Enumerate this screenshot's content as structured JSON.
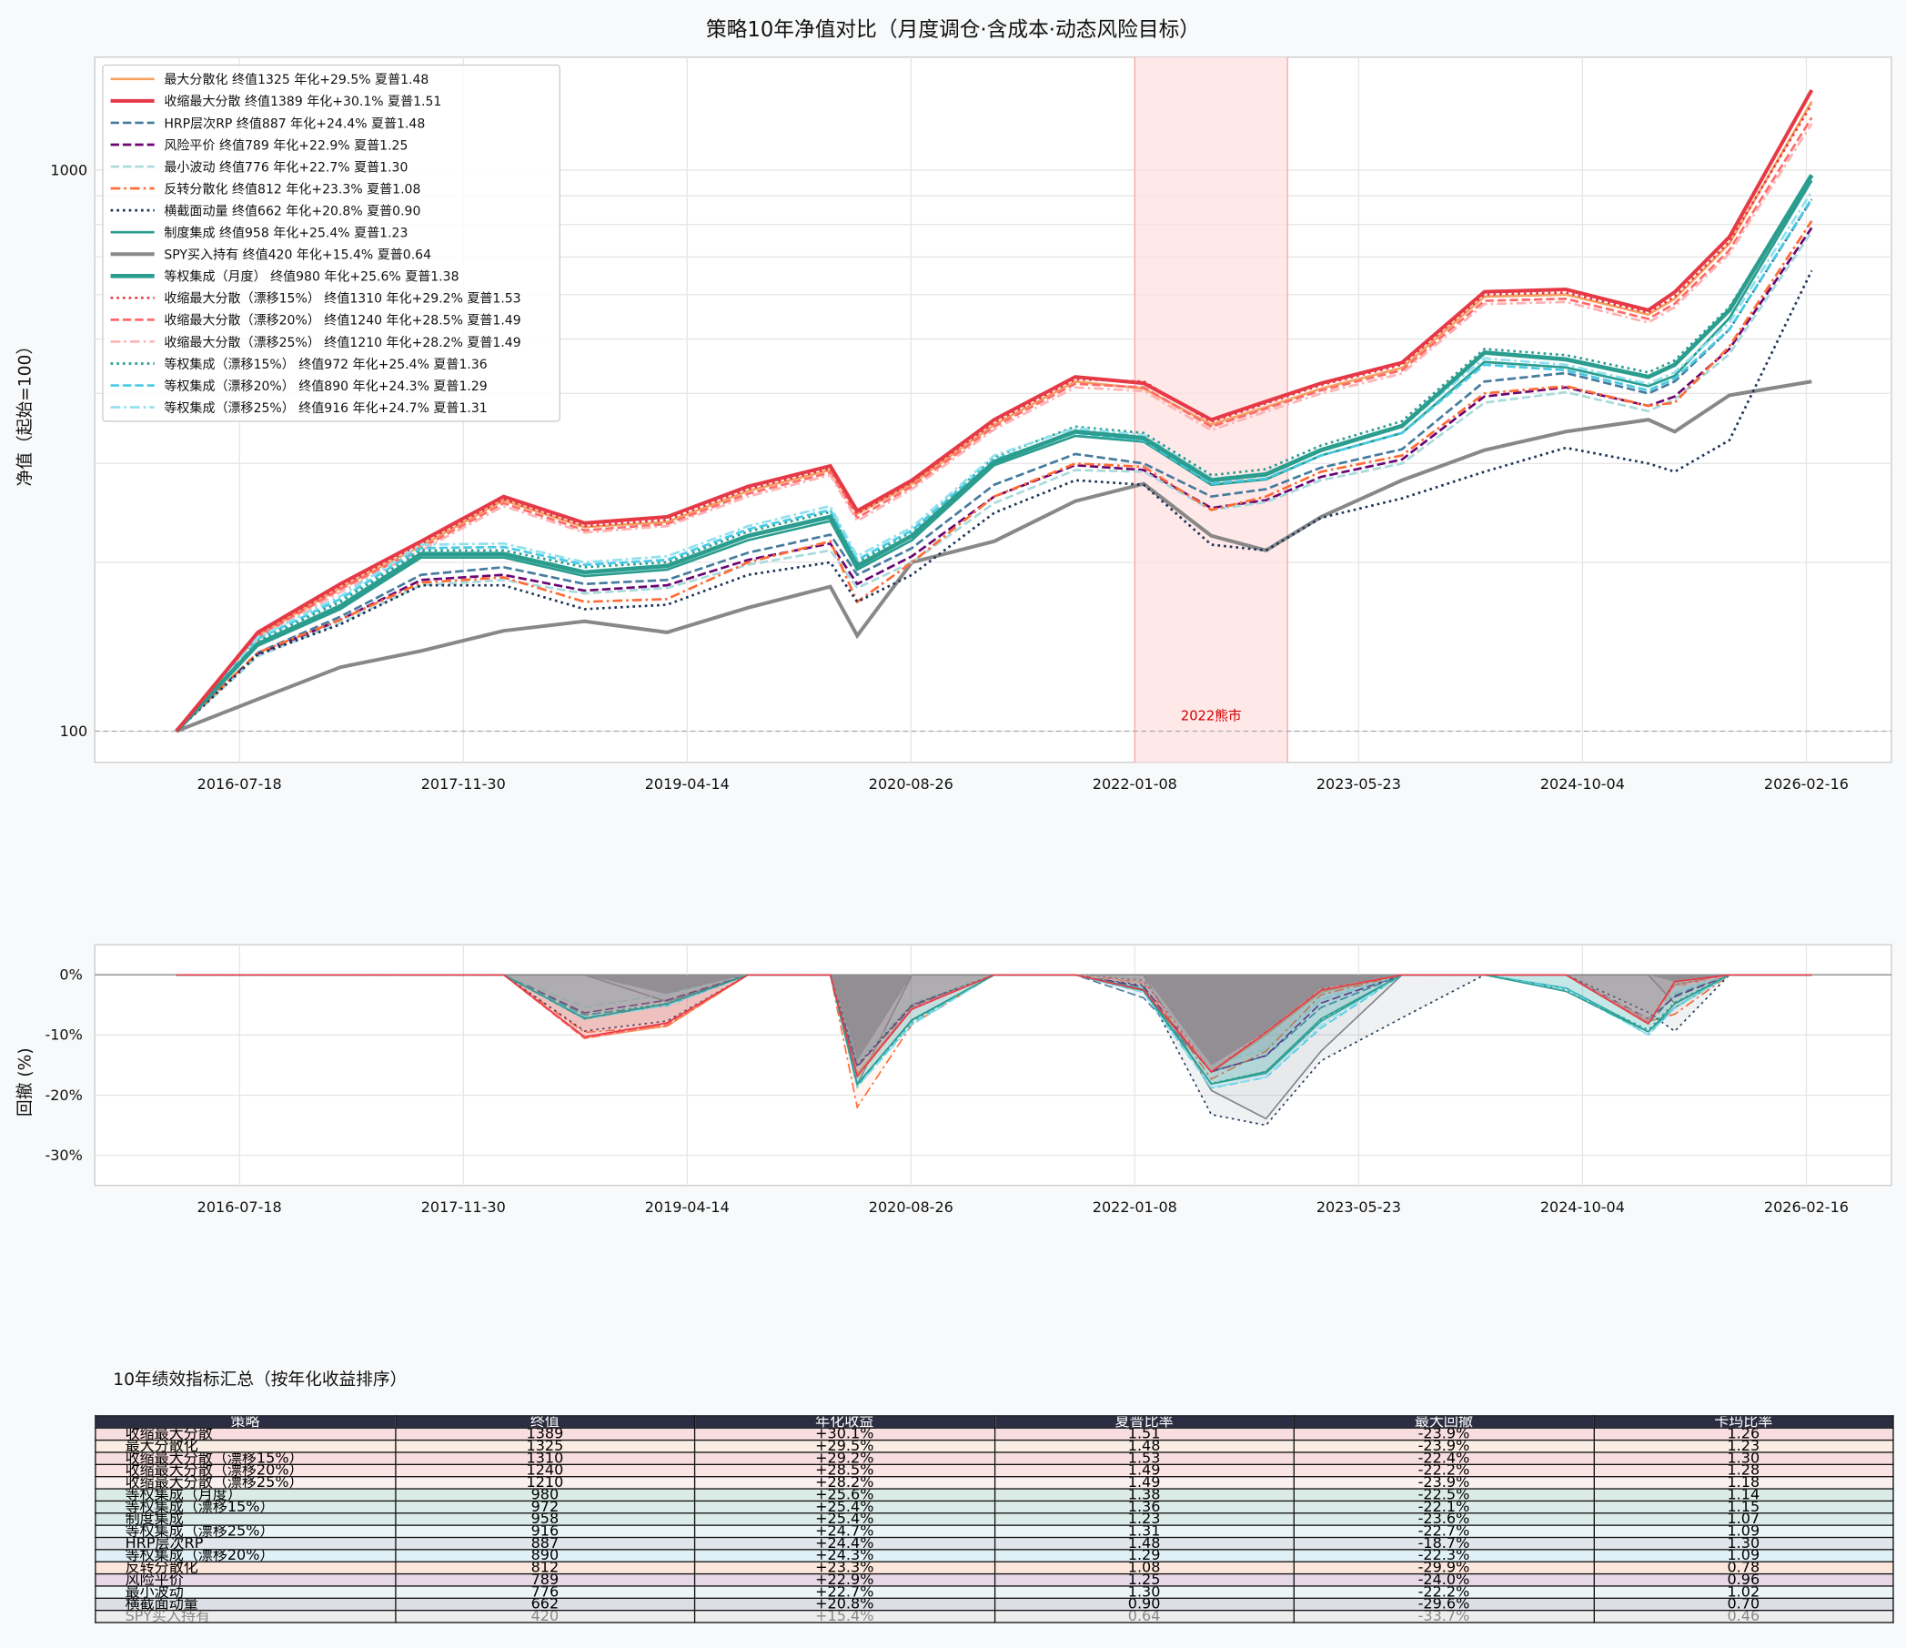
{
  "chart_data": [
    {
      "type": "line",
      "title": "策略10年净值对比（月度调仓·含成本·动态风险目标）",
      "xlabel": "",
      "ylabel": "净值（起始=100）",
      "yscale": "log",
      "ylim": [
        88,
        1590
      ],
      "yticks": [
        "100",
        "1000"
      ],
      "xticks": [
        "2016-07-18",
        "2017-11-30",
        "2019-04-14",
        "2020-08-26",
        "2022-01-08",
        "2023-05-23",
        "2024-10-04",
        "2026-02-16"
      ],
      "grid": true,
      "legend_position": "top-left",
      "reference_line": 100,
      "annotation": {
        "label": "2022熊市",
        "start": "2022-01-08",
        "end": "2022-12-15",
        "color": "#d00000"
      },
      "x": [
        "2016-02",
        "2016-08",
        "2017-02",
        "2017-08",
        "2018-02",
        "2018-08",
        "2019-02",
        "2019-08",
        "2020-02",
        "2020-04",
        "2020-08",
        "2021-02",
        "2021-08",
        "2022-01",
        "2022-06",
        "2022-10",
        "2023-02",
        "2023-08",
        "2024-02",
        "2024-08",
        "2025-02",
        "2025-04",
        "2025-08",
        "2026-02"
      ],
      "series": [
        {
          "name": "最大分散化",
          "legend": "最大分散化  终值1325  年化+29.5%  夏普1.48",
          "color": "#f4a261",
          "style": "solid",
          "width": 2,
          "values": [
            100,
            148,
            180,
            214,
            258,
            231,
            236,
            268,
            292,
            244,
            276,
            352,
            420,
            408,
            352,
            378,
            408,
            444,
            595,
            600,
            553,
            590,
            740,
            1325
          ]
        },
        {
          "name": "收缩最大分散",
          "legend": "收缩最大分散  终值1389  年化+30.1%  夏普1.51",
          "color": "#e63946",
          "style": "solid",
          "width": 3,
          "values": [
            100,
            150,
            183,
            218,
            262,
            235,
            241,
            273,
            297,
            247,
            280,
            359,
            428,
            417,
            359,
            387,
            417,
            454,
            607,
            613,
            563,
            606,
            760,
            1389
          ]
        },
        {
          "name": "HRP层次RP",
          "legend": "HRP层次RP  终值887  年化+24.4%  夏普1.48",
          "color": "#457b9d",
          "style": "dashed",
          "width": 2,
          "values": [
            100,
            138,
            160,
            190,
            196,
            183,
            186,
            208,
            224,
            190,
            212,
            275,
            312,
            300,
            262,
            270,
            295,
            318,
            420,
            435,
            400,
            420,
            520,
            887
          ]
        },
        {
          "name": "风险平价",
          "legend": "风险平价  终值789  年化+22.9%  夏普1.25",
          "color": "#6a0572",
          "style": "dashed",
          "width": 2,
          "values": [
            100,
            137,
            158,
            186,
            190,
            178,
            182,
            202,
            216,
            183,
            205,
            262,
            298,
            292,
            250,
            258,
            284,
            305,
            395,
            410,
            380,
            395,
            480,
            789
          ]
        },
        {
          "name": "最小波动",
          "legend": "最小波动  终值776  年化+22.7%  夏普1.30",
          "color": "#a8dadc",
          "style": "dashed",
          "width": 2,
          "values": [
            100,
            136,
            156,
            182,
            186,
            176,
            180,
            198,
            210,
            180,
            200,
            255,
            292,
            290,
            248,
            256,
            280,
            300,
            385,
            402,
            372,
            390,
            470,
            776
          ]
        },
        {
          "name": "反转分散化",
          "legend": "反转分散化  终值812  年化+23.3%  夏普1.08",
          "color": "#ff6b35",
          "style": "dashdot",
          "width": 2,
          "values": [
            100,
            138,
            158,
            184,
            188,
            170,
            172,
            200,
            218,
            170,
            200,
            262,
            300,
            296,
            248,
            262,
            290,
            310,
            400,
            412,
            380,
            385,
            485,
            812
          ]
        },
        {
          "name": "横截面动量",
          "legend": "横截面动量  终值662  年化+20.8%  夏普0.90",
          "color": "#1d3557",
          "style": "dotted",
          "width": 2,
          "values": [
            100,
            137,
            155,
            182,
            182,
            165,
            168,
            190,
            200,
            170,
            190,
            245,
            280,
            275,
            215,
            210,
            240,
            260,
            290,
            320,
            300,
            290,
            330,
            662
          ]
        },
        {
          "name": "制度集成",
          "legend": "制度集成  终值958  年化+25.4%  夏普1.23",
          "color": "#2a9d8f",
          "style": "solid",
          "width": 2,
          "values": [
            100,
            142,
            165,
            204,
            204,
            189,
            194,
            219,
            237,
            194,
            219,
            298,
            336,
            328,
            275,
            281,
            310,
            340,
            455,
            445,
            412,
            430,
            545,
            958
          ]
        },
        {
          "name": "SPY买入持有",
          "legend": "SPY买入持有  终值420  年化+15.4%  夏普0.64",
          "color": "#888888",
          "style": "solid",
          "width": 3,
          "values": [
            100,
            114,
            130,
            139,
            151,
            157,
            150,
            166,
            181,
            148,
            200,
            218,
            257,
            276,
            223,
            210,
            241,
            280,
            317,
            342,
            359,
            342,
            397,
            420
          ]
        },
        {
          "name": "等权集成（月度）",
          "legend": "等权集成（月度）  终值980  年化+25.6%  夏普1.38",
          "color": "#2a9d8f",
          "style": "solid",
          "width": 3.5,
          "values": [
            100,
            143,
            167,
            207,
            207,
            192,
            197,
            223,
            241,
            197,
            223,
            302,
            342,
            333,
            280,
            287,
            317,
            350,
            473,
            460,
            428,
            450,
            563,
            980
          ]
        },
        {
          "name": "收缩最大分散（漂移15%）",
          "legend": "收缩最大分散（漂移15%）  终值1310  年化+29.2%  夏普1.53",
          "color": "#e63946",
          "style": "dotted",
          "width": 2,
          "values": [
            100,
            149,
            181,
            216,
            259,
            232,
            238,
            270,
            294,
            244,
            278,
            355,
            424,
            420,
            356,
            384,
            414,
            450,
            600,
            605,
            557,
            595,
            745,
            1310
          ]
        },
        {
          "name": "收缩最大分散（漂移20%）",
          "legend": "收缩最大分散（漂移20%）  终值1240  年化+28.5%  夏普1.49",
          "color": "#ff6b6b",
          "style": "dashed",
          "width": 2,
          "values": [
            100,
            147,
            179,
            212,
            255,
            228,
            234,
            265,
            289,
            240,
            273,
            349,
            416,
            410,
            349,
            376,
            405,
            440,
            585,
            590,
            543,
            578,
            720,
            1240
          ]
        },
        {
          "name": "收缩最大分散（漂移25%）",
          "legend": "收缩最大分散（漂移25%）  终值1210  年化+28.2%  夏普1.49",
          "color": "#ffb3b3",
          "style": "dashdot",
          "width": 2,
          "values": [
            100,
            146,
            177,
            210,
            252,
            226,
            232,
            262,
            286,
            237,
            270,
            345,
            410,
            404,
            344,
            371,
            400,
            434,
            577,
            582,
            535,
            570,
            710,
            1210
          ]
        },
        {
          "name": "等权集成（漂移15%）",
          "legend": "等权集成（漂移15%）  终值972  年化+25.4%  夏普1.36",
          "color": "#2a9d8f",
          "style": "dotted",
          "width": 2,
          "values": [
            100,
            145,
            170,
            210,
            210,
            196,
            200,
            227,
            246,
            200,
            227,
            308,
            349,
            340,
            286,
            293,
            323,
            357,
            480,
            468,
            436,
            458,
            570,
            972
          ]
        },
        {
          "name": "等权集成（漂移20%）",
          "legend": "等权集成（漂移20%）  终值890  年化+24.3%  夏普1.29",
          "color": "#48cae4",
          "style": "dashed",
          "width": 2,
          "values": [
            100,
            146,
            172,
            212,
            213,
            198,
            202,
            229,
            248,
            202,
            228,
            305,
            340,
            330,
            276,
            282,
            310,
            340,
            450,
            440,
            405,
            425,
            520,
            890
          ]
        },
        {
          "name": "等权集成（漂移25%）",
          "legend": "等权集成（漂移25%）  终值916  年化+24.7%  夏普1.31",
          "color": "#90e0ef",
          "style": "dashdot",
          "width": 2,
          "values": [
            100,
            147,
            174,
            215,
            216,
            200,
            205,
            232,
            252,
            205,
            231,
            310,
            347,
            337,
            282,
            288,
            318,
            349,
            462,
            450,
            416,
            436,
            535,
            916
          ]
        }
      ]
    },
    {
      "type": "area",
      "ylabel": "回撤 (%)",
      "ylim": [
        -35,
        5
      ],
      "yticks": [
        "0%",
        "-10%",
        "-20%",
        "-30%"
      ],
      "xticks": [
        "2016-07-18",
        "2017-11-30",
        "2019-04-14",
        "2020-08-26",
        "2022-01-08",
        "2023-05-23",
        "2024-10-04",
        "2026-02-16"
      ],
      "grid": true,
      "derived_from": "drawdown of each series above"
    },
    {
      "type": "table",
      "title": "10年绩效指标汇总（按年化收益排序）",
      "columns": [
        "策略",
        "终值",
        "年化收益",
        "夏普比率",
        "最大回撤",
        "卡玛比率"
      ],
      "rows": [
        {
          "cells": [
            "收缩最大分散",
            "1389",
            "+30.1%",
            "1.51",
            "-23.9%",
            "1.26"
          ],
          "bg": "#f8dde0"
        },
        {
          "cells": [
            "最大分散化",
            "1325",
            "+29.5%",
            "1.48",
            "-23.9%",
            "1.23"
          ],
          "bg": "#faeee4"
        },
        {
          "cells": [
            "收缩最大分散（漂移15%）",
            "1310",
            "+29.2%",
            "1.53",
            "-22.4%",
            "1.30"
          ],
          "bg": "#f8dde0"
        },
        {
          "cells": [
            "收缩最大分散（漂移20%）",
            "1240",
            "+28.5%",
            "1.49",
            "-22.2%",
            "1.28"
          ],
          "bg": "#fae4e4"
        },
        {
          "cells": [
            "收缩最大分散（漂移25%）",
            "1210",
            "+28.2%",
            "1.49",
            "-23.9%",
            "1.18"
          ],
          "bg": "#fbf0f0"
        },
        {
          "cells": [
            "等权集成（月度）",
            "980",
            "+25.6%",
            "1.38",
            "-22.5%",
            "1.14"
          ],
          "bg": "#dbebe8"
        },
        {
          "cells": [
            "等权集成（漂移15%）",
            "972",
            "+25.4%",
            "1.36",
            "-22.1%",
            "1.15"
          ],
          "bg": "#dbebe8"
        },
        {
          "cells": [
            "制度集成",
            "958",
            "+25.4%",
            "1.23",
            "-23.6%",
            "1.07"
          ],
          "bg": "#dbebe8"
        },
        {
          "cells": [
            "等权集成（漂移25%）",
            "916",
            "+24.7%",
            "1.31",
            "-22.7%",
            "1.09"
          ],
          "bg": "#e9f5f7"
        },
        {
          "cells": [
            "HRP层次RP",
            "887",
            "+24.4%",
            "1.48",
            "-18.7%",
            "1.30"
          ],
          "bg": "#e0e6ec"
        },
        {
          "cells": [
            "等权集成（漂移20%）",
            "890",
            "+24.3%",
            "1.29",
            "-22.3%",
            "1.09"
          ],
          "bg": "#dff0f6"
        },
        {
          "cells": [
            "反转分散化",
            "812",
            "+23.3%",
            "1.08",
            "-29.9%",
            "0.78"
          ],
          "bg": "#fce6dc"
        },
        {
          "cells": [
            "风险平价",
            "789",
            "+22.9%",
            "1.25",
            "-24.0%",
            "0.96"
          ],
          "bg": "#e6d8e6"
        },
        {
          "cells": [
            "最小波动",
            "776",
            "+22.7%",
            "1.30",
            "-22.2%",
            "1.02"
          ],
          "bg": "#ecf5f5"
        },
        {
          "cells": [
            "横截面动量",
            "662",
            "+20.8%",
            "0.90",
            "-29.6%",
            "0.70"
          ],
          "bg": "#dcdfe5"
        },
        {
          "cells": [
            "SPY买入持有",
            "420",
            "+15.4%",
            "0.64",
            "-33.7%",
            "0.46"
          ],
          "bg": "#ededed"
        }
      ]
    }
  ]
}
